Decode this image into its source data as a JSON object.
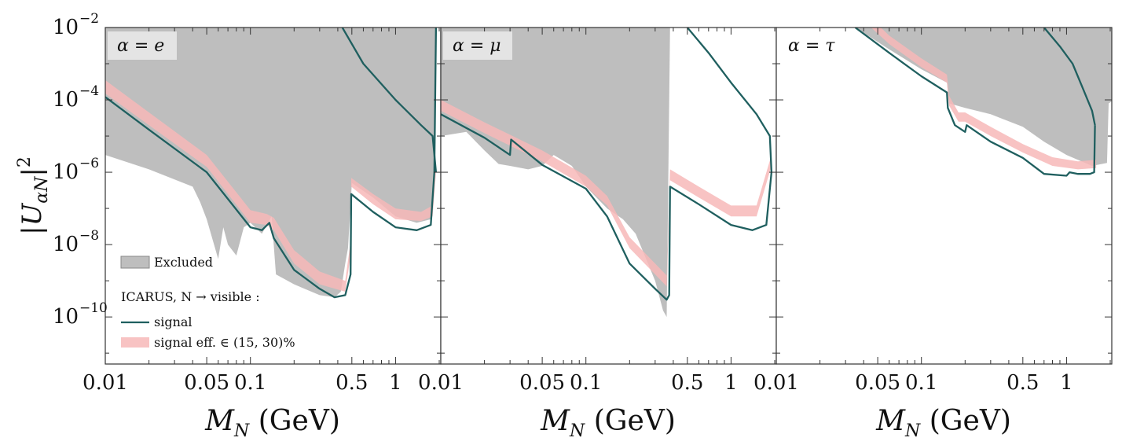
{
  "chart_data": [
    {
      "type": "area",
      "panel_label": "α = e",
      "xlabel": "M_N (GeV)",
      "ylabel": "|U_{αN}|²",
      "xscale": "log",
      "yscale": "log",
      "xlim": [
        0.01,
        2.05
      ],
      "ylim": [
        5e-12,
        0.01
      ],
      "xticks": [
        0.01,
        0.05,
        0.1,
        0.5,
        1
      ],
      "xtick_labels": [
        "0.01",
        "0.05",
        "0.1",
        "0.5",
        "1"
      ],
      "yticks": [
        1e-10,
        1e-08,
        1e-06,
        0.0001,
        0.01
      ],
      "ytick_labels": [
        "10",
        "10",
        "10",
        "10",
        "10"
      ],
      "ytick_exponents": [
        "−10",
        "−8",
        "−6",
        "−4",
        "−2"
      ],
      "legend": {
        "placement": "bottom-left",
        "excluded": "Excluded",
        "header": "ICARUS, N → visible :",
        "signal": "signal",
        "band": "signal eff. ∈ (15, 30)%"
      },
      "excluded_region_boundary": [
        [
          0.01,
          3e-06
        ],
        [
          0.02,
          1.2e-06
        ],
        [
          0.04,
          4e-07
        ],
        [
          0.045,
          1.5e-07
        ],
        [
          0.05,
          5e-08
        ],
        [
          0.06,
          4e-09
        ],
        [
          0.065,
          3e-08
        ],
        [
          0.07,
          1e-08
        ],
        [
          0.08,
          5e-09
        ],
        [
          0.09,
          3e-08
        ],
        [
          0.1,
          4e-08
        ],
        [
          0.12,
          2e-08
        ],
        [
          0.14,
          6e-08
        ],
        [
          0.15,
          1.5e-09
        ],
        [
          0.2,
          8e-10
        ],
        [
          0.3,
          4e-10
        ],
        [
          0.38,
          3.5e-10
        ],
        [
          0.42,
          5e-10
        ],
        [
          0.45,
          3e-09
        ],
        [
          0.47,
          8e-09
        ],
        [
          0.5,
          5e-07
        ],
        [
          0.7,
          2e-07
        ],
        [
          1.0,
          6e-08
        ],
        [
          1.4,
          4e-08
        ],
        [
          1.75,
          5e-08
        ],
        [
          1.85,
          1e-06
        ],
        [
          1.9,
          0.01
        ]
      ],
      "series": [
        {
          "name": "signal",
          "x": [
            0.01,
            0.02,
            0.05,
            0.1,
            0.12,
            0.135,
            0.145,
            0.2,
            0.3,
            0.38,
            0.45,
            0.49,
            0.495,
            0.7,
            1.0,
            1.4,
            1.75,
            1.85,
            1.9
          ],
          "y": [
            0.00012,
            1.5e-05,
            1e-06,
            3e-08,
            2.5e-08,
            4e-08,
            1.5e-08,
            2e-09,
            6e-10,
            3.5e-10,
            4e-10,
            1.5e-09,
            2.5e-07,
            8e-08,
            3e-08,
            2.5e-08,
            3.5e-08,
            1e-06,
            0.01
          ]
        },
        {
          "name": "signal_upper_branch",
          "x": [
            0.43,
            0.6,
            1.0,
            1.5,
            1.8,
            1.9
          ],
          "y": [
            0.01,
            0.001,
            0.0001,
            2e-05,
            1e-05,
            1e-06
          ]
        },
        {
          "name": "signal eff. ∈ (15, 30)%",
          "x": [
            0.01,
            0.02,
            0.05,
            0.1,
            0.13,
            0.145,
            0.2,
            0.3,
            0.45,
            0.49,
            0.495,
            0.7,
            1.0,
            1.5,
            1.8,
            1.9
          ],
          "y_low": [
            0.00015,
            2e-05,
            1.4e-06,
            4e-08,
            3.5e-08,
            2.5e-08,
            3e-09,
            8e-10,
            5e-10,
            5e-09,
            4e-07,
            1.3e-07,
            5e-08,
            4.5e-08,
            6e-08,
            1e-06
          ],
          "y_high": [
            0.00035,
            4.5e-05,
            3e-06,
            9e-08,
            7e-08,
            5.5e-08,
            7e-09,
            1.8e-09,
            1e-09,
            1.2e-08,
            7e-07,
            2.5e-07,
            1e-07,
            8e-08,
            1.2e-07,
            2e-06
          ]
        }
      ]
    },
    {
      "type": "area",
      "panel_label": "α = μ",
      "xlabel": "M_N (GeV)",
      "xscale": "log",
      "yscale": "log",
      "xlim": [
        0.01,
        2.05
      ],
      "ylim": [
        5e-12,
        0.01
      ],
      "xticks": [
        0.01,
        0.05,
        0.1,
        0.5,
        1
      ],
      "xtick_labels": [
        "0.01",
        "0.05",
        "0.1",
        "0.5",
        "1"
      ],
      "excluded_region_boundary": [
        [
          0.01,
          1e-05
        ],
        [
          0.015,
          1.3e-05
        ],
        [
          0.02,
          4e-06
        ],
        [
          0.025,
          1.7e-06
        ],
        [
          0.03,
          1.5e-06
        ],
        [
          0.04,
          1.2e-06
        ],
        [
          0.05,
          1.5e-06
        ],
        [
          0.06,
          3e-06
        ],
        [
          0.08,
          1.5e-06
        ],
        [
          0.1,
          4e-07
        ],
        [
          0.14,
          1e-07
        ],
        [
          0.18,
          5e-08
        ],
        [
          0.22,
          2e-08
        ],
        [
          0.3,
          1e-09
        ],
        [
          0.34,
          1.5e-10
        ],
        [
          0.36,
          1e-10
        ],
        [
          0.38,
          0.01
        ]
      ],
      "series": [
        {
          "name": "signal",
          "x": [
            0.01,
            0.02,
            0.03,
            0.0305,
            0.05,
            0.1,
            0.14,
            0.2,
            0.3,
            0.36,
            0.375,
            0.38,
            0.6,
            1.0,
            1.4,
            1.75,
            1.9
          ],
          "y": [
            4e-05,
            9e-06,
            3e-06,
            8e-06,
            1.6e-06,
            3.5e-07,
            6e-08,
            3e-09,
            6e-10,
            3e-10,
            4e-10,
            4e-07,
            1.3e-07,
            3.5e-08,
            2.5e-08,
            3.5e-08,
            1e-06
          ]
        },
        {
          "name": "signal_upper_branch",
          "x": [
            0.5,
            0.7,
            1.0,
            1.5,
            1.85,
            1.9
          ],
          "y": [
            0.01,
            0.002,
            0.0003,
            4e-05,
            1e-05,
            1e-06
          ]
        },
        {
          "name": "signal eff. ∈ (15, 30)%",
          "x": [
            0.01,
            0.02,
            0.05,
            0.1,
            0.14,
            0.2,
            0.3,
            0.36,
            0.38,
            0.6,
            1.0,
            1.5,
            1.9
          ],
          "y_low": [
            5e-05,
            1.2e-05,
            2e-06,
            4e-07,
            1.2e-07,
            8e-09,
            1.5e-09,
            7e-10,
            6e-07,
            2e-07,
            6e-08,
            6e-08,
            1.5e-06
          ],
          "y_high": [
            0.0001,
            2.4e-05,
            4e-06,
            8e-07,
            2.2e-07,
            1.6e-08,
            3e-09,
            1.4e-09,
            1.2e-06,
            4e-07,
            1.2e-07,
            1.2e-07,
            3e-06
          ]
        }
      ]
    },
    {
      "type": "area",
      "panel_label": "α = τ",
      "xlabel": "M_N (GeV)",
      "xscale": "log",
      "yscale": "log",
      "xlim": [
        0.01,
        2.05
      ],
      "ylim": [
        5e-12,
        0.01
      ],
      "xticks": [
        0.01,
        0.05,
        0.1,
        0.5,
        1
      ],
      "xtick_labels": [
        "0.01",
        "0.05",
        "0.1",
        "0.5",
        "1"
      ],
      "excluded_region_boundary": [
        [
          0.035,
          0.01
        ],
        [
          0.06,
          0.0025
        ],
        [
          0.1,
          0.0007
        ],
        [
          0.15,
          0.0003
        ],
        [
          0.155,
          8e-05
        ],
        [
          0.2,
          6e-05
        ],
        [
          0.3,
          4e-05
        ],
        [
          0.5,
          1.8e-05
        ],
        [
          0.7,
          7e-06
        ],
        [
          1.0,
          3e-06
        ],
        [
          1.5,
          1.5e-06
        ],
        [
          1.9,
          1.8e-06
        ],
        [
          1.95,
          8e-05
        ],
        [
          2.05,
          9e-05
        ]
      ],
      "series": [
        {
          "name": "signal",
          "x": [
            0.035,
            0.06,
            0.1,
            0.15,
            0.152,
            0.17,
            0.2,
            0.205,
            0.3,
            0.5,
            0.7,
            1.0,
            1.05,
            1.2,
            1.45,
            1.55,
            1.57
          ],
          "y": [
            0.01,
            0.002,
            0.00045,
            0.00016,
            6e-05,
            2e-05,
            1.3e-05,
            2e-05,
            7e-06,
            2.5e-06,
            9e-07,
            8e-07,
            1e-06,
            9e-07,
            9e-07,
            1e-06,
            2e-05
          ]
        },
        {
          "name": "signal_upper_branch",
          "x": [
            0.7,
            0.9,
            1.1,
            1.3,
            1.5,
            1.57
          ],
          "y": [
            0.01,
            0.003,
            0.001,
            0.0002,
            5e-05,
            2e-05
          ]
        },
        {
          "name": "signal eff. ∈ (15, 30)%",
          "x": [
            0.045,
            0.06,
            0.1,
            0.15,
            0.155,
            0.18,
            0.2,
            0.3,
            0.5,
            0.8,
            1.2,
            1.6
          ],
          "y_low": [
            0.01,
            0.0035,
            0.0008,
            0.0003,
            7e-05,
            2.5e-05,
            2.5e-05,
            1e-05,
            3.5e-06,
            1.5e-06,
            1.2e-06,
            1.3e-06
          ],
          "y_high": [
            0.018,
            0.006,
            0.0014,
            0.0005,
            0.00013,
            4.5e-05,
            4.5e-05,
            1.8e-05,
            6e-06,
            2.6e-06,
            2e-06,
            2.2e-06
          ]
        }
      ]
    }
  ],
  "colors": {
    "excluded": "#bebebe",
    "excluded_edge": "#8f8f8f",
    "signal": "#1f5f5f",
    "band": "#f7b8b8",
    "label_box": "#e4e4e4"
  }
}
